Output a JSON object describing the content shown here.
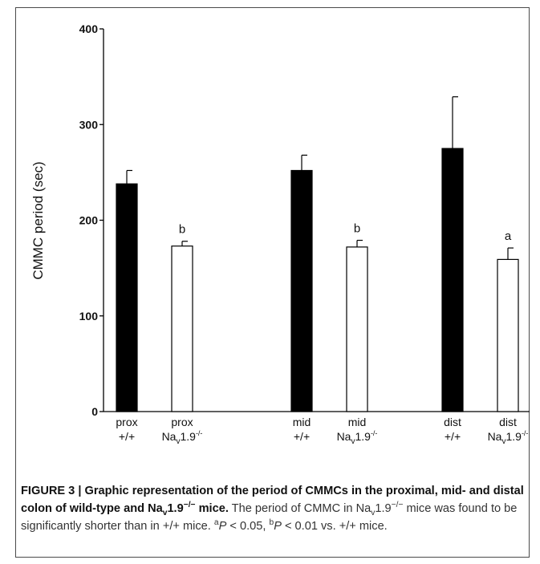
{
  "chart_data": {
    "type": "bar",
    "ylabel": "CMMC period (sec)",
    "ylim": [
      0,
      400
    ],
    "yticks": [
      "0",
      "100",
      "200",
      "300",
      "400"
    ],
    "ytick_values": [
      0,
      100,
      200,
      300,
      400
    ],
    "grid": false,
    "legend": "none",
    "colors": {
      "wildtype": "#000000",
      "knockout": "#ffffff",
      "outline": "#000000"
    },
    "bars": [
      {
        "label_line1": "prox",
        "label_line2": "+/+",
        "label_line2_sub": "",
        "label_line2_sup": "",
        "genotype": "wildtype",
        "value": 238,
        "error": 14,
        "significance": ""
      },
      {
        "label_line1": "prox",
        "label_line2": "Na",
        "label_line2_sub": "v",
        "label_line2_tail": "1.9",
        "label_line2_sup": "-/-",
        "genotype": "knockout",
        "value": 173,
        "error": 5,
        "significance": "b"
      },
      {
        "label_line1": "mid",
        "label_line2": "+/+",
        "label_line2_sub": "",
        "label_line2_sup": "",
        "genotype": "wildtype",
        "value": 252,
        "error": 16,
        "significance": ""
      },
      {
        "label_line1": "mid",
        "label_line2": "Na",
        "label_line2_sub": "v",
        "label_line2_tail": "1.9",
        "label_line2_sup": "-/-",
        "genotype": "knockout",
        "value": 172,
        "error": 7,
        "significance": "b"
      },
      {
        "label_line1": "dist",
        "label_line2": "+/+",
        "label_line2_sub": "",
        "label_line2_sup": "",
        "genotype": "wildtype",
        "value": 275,
        "error": 54,
        "significance": ""
      },
      {
        "label_line1": "dist",
        "label_line2": "Na",
        "label_line2_sub": "v",
        "label_line2_tail": "1.9",
        "label_line2_sup": "-/-",
        "genotype": "knockout",
        "value": 159,
        "error": 12,
        "significance": "a"
      }
    ]
  },
  "caption": {
    "bold_part1": "FIGURE 3 | Graphic representation of the period of CMMCs in the proximal, mid- and distal colon of wild-type and Na",
    "bold_sub": "v",
    "bold_part2": "1.9",
    "bold_sup": "−/−",
    "bold_part3": " mice.",
    "text1": " The period of CMMC in Na",
    "text_sub": "v",
    "text2": "1.9",
    "text_sup": "−/−",
    "text3": " mice was found to be significantly shorter than in +/+ mice. ",
    "note_a_sup": "a",
    "note_a": "P",
    "note_a_text": " < 0.05, ",
    "note_b_sup": "b",
    "note_b": "P",
    "note_b_text": " < 0.01 vs. +/+ mice."
  }
}
